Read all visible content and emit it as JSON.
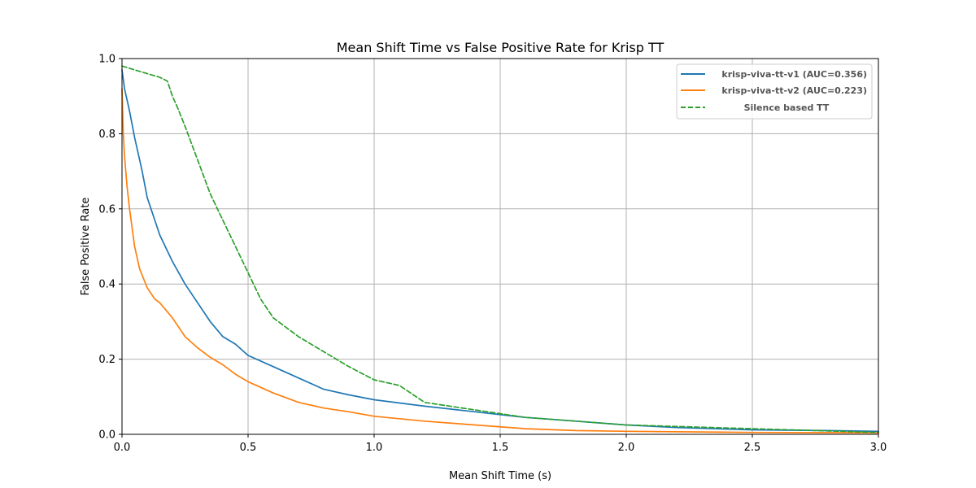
{
  "chart_data": {
    "type": "line",
    "title": "Mean Shift Time vs False Positive Rate for Krisp TT",
    "xlabel": "Mean Shift Time (s)",
    "ylabel": "False Positive Rate",
    "xlim": [
      0,
      3
    ],
    "ylim": [
      0,
      1
    ],
    "xticks": [
      "0.0",
      "0.5",
      "1.0",
      "1.5",
      "2.0",
      "2.5",
      "3.0"
    ],
    "yticks": [
      "0.0",
      "0.2",
      "0.4",
      "0.6",
      "0.8",
      "1.0"
    ],
    "grid": true,
    "legend_position": "top-right",
    "series": [
      {
        "name": "krisp-viva-tt-v1 (AUC=0.356)",
        "color": "#1f77b4",
        "style": "solid",
        "x": [
          0,
          0.01,
          0.03,
          0.05,
          0.08,
          0.1,
          0.15,
          0.2,
          0.25,
          0.3,
          0.35,
          0.4,
          0.45,
          0.5,
          0.6,
          0.7,
          0.8,
          0.9,
          1.0,
          1.2,
          1.4,
          1.6,
          1.8,
          2.0,
          2.2,
          2.5,
          2.8,
          3.0
        ],
        "y": [
          0.97,
          0.92,
          0.86,
          0.79,
          0.7,
          0.63,
          0.53,
          0.46,
          0.4,
          0.35,
          0.3,
          0.26,
          0.24,
          0.21,
          0.18,
          0.15,
          0.12,
          0.105,
          0.092,
          0.075,
          0.06,
          0.045,
          0.035,
          0.025,
          0.018,
          0.012,
          0.01,
          0.008
        ]
      },
      {
        "name": "krisp-viva-tt-v2 (AUC=0.223)",
        "color": "#ff7f0e",
        "style": "solid",
        "x": [
          0,
          0.005,
          0.01,
          0.02,
          0.03,
          0.05,
          0.07,
          0.1,
          0.13,
          0.15,
          0.2,
          0.25,
          0.3,
          0.35,
          0.4,
          0.45,
          0.5,
          0.6,
          0.7,
          0.8,
          0.9,
          1.0,
          1.2,
          1.4,
          1.6,
          1.8,
          2.0,
          2.5,
          3.0
        ],
        "y": [
          0.92,
          0.8,
          0.74,
          0.66,
          0.6,
          0.5,
          0.44,
          0.39,
          0.36,
          0.35,
          0.31,
          0.26,
          0.23,
          0.205,
          0.185,
          0.16,
          0.14,
          0.11,
          0.085,
          0.07,
          0.06,
          0.048,
          0.035,
          0.025,
          0.015,
          0.01,
          0.008,
          0.005,
          0.004
        ]
      },
      {
        "name": "Silence based TT",
        "color": "#2ca02c",
        "style": "dashed",
        "x": [
          0,
          0.05,
          0.1,
          0.15,
          0.18,
          0.2,
          0.22,
          0.25,
          0.3,
          0.35,
          0.4,
          0.45,
          0.5,
          0.55,
          0.6,
          0.7,
          0.8,
          0.9,
          1.0,
          1.1,
          1.2,
          1.3,
          1.4,
          1.5,
          1.6,
          1.8,
          2.0,
          2.5,
          3.0
        ],
        "y": [
          0.98,
          0.97,
          0.96,
          0.95,
          0.94,
          0.9,
          0.87,
          0.82,
          0.73,
          0.64,
          0.57,
          0.5,
          0.43,
          0.36,
          0.31,
          0.26,
          0.22,
          0.18,
          0.145,
          0.13,
          0.085,
          0.075,
          0.065,
          0.055,
          0.045,
          0.035,
          0.025,
          0.015,
          0.005
        ]
      }
    ]
  }
}
